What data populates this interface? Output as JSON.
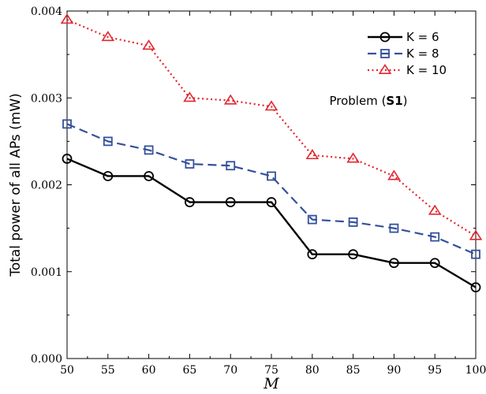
{
  "chart_data": {
    "type": "line",
    "xlabel": "M",
    "ylabel": "Total power of all APs (mW)",
    "x": [
      50,
      55,
      60,
      65,
      70,
      75,
      80,
      85,
      90,
      95,
      100
    ],
    "xlim": [
      50,
      100
    ],
    "ylim": [
      0,
      0.004
    ],
    "xticks": [
      "50",
      "55",
      "60",
      "65",
      "70",
      "75",
      "80",
      "85",
      "90",
      "95",
      "100"
    ],
    "yticks": [
      "0.000",
      "0.001",
      "0.002",
      "0.003",
      "0.004"
    ],
    "legend_position": "top-right",
    "annotation": {
      "prefix": "Problem (",
      "bold": "S1",
      "suffix": ")"
    },
    "series": [
      {
        "name": "K = 6",
        "color": "#000000",
        "marker": "circle",
        "dash": "solid",
        "values": [
          0.0023,
          0.0021,
          0.0021,
          0.0018,
          0.0018,
          0.0018,
          0.0012,
          0.0012,
          0.0011,
          0.0011,
          0.00082
        ]
      },
      {
        "name": "K = 8",
        "color": "#34519c",
        "marker": "square",
        "dash": "dashed",
        "values": [
          0.0027,
          0.0025,
          0.0024,
          0.00224,
          0.00222,
          0.0021,
          0.0016,
          0.00157,
          0.0015,
          0.0014,
          0.0012
        ]
      },
      {
        "name": "K = 10",
        "color": "#e3262d",
        "marker": "triangle",
        "dash": "dotted",
        "values": [
          0.0039,
          0.0037,
          0.0036,
          0.003,
          0.00297,
          0.0029,
          0.00234,
          0.0023,
          0.0021,
          0.0017,
          0.00141
        ]
      }
    ]
  }
}
